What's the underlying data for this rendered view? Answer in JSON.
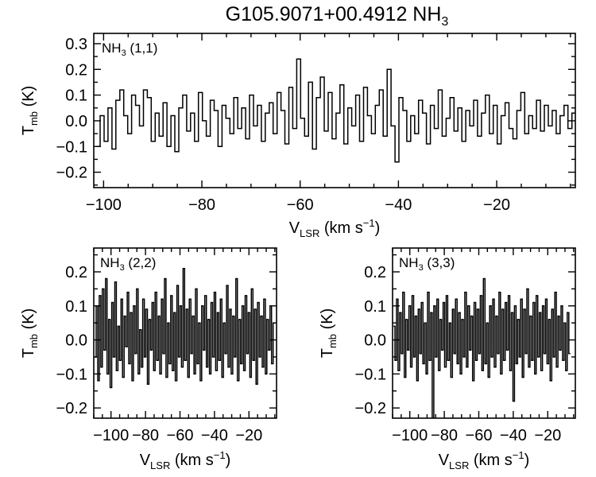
{
  "figure": {
    "title_main": "G105.9071+00.4912 NH",
    "title_sub": "3"
  },
  "chart_data": [
    {
      "type": "line",
      "series": [
        {
          "name": "NH3 (1,1)"
        }
      ],
      "label_main": "NH",
      "label_sub": "3",
      "label_rest": " (1,1)",
      "xlim": [
        -102,
        -4
      ],
      "ylim": [
        -0.26,
        0.34
      ],
      "x_ticks": [
        -100,
        -80,
        -60,
        -40,
        -20
      ],
      "x_tick_labels": [
        "−100",
        "−80",
        "−60",
        "−40",
        "−20"
      ],
      "y_ticks": [
        -0.2,
        -0.1,
        0.0,
        0.1,
        0.2,
        0.3
      ],
      "y_tick_labels": [
        "−0.2",
        "−0.1",
        "0.0",
        "0.1",
        "0.2",
        "0.3"
      ],
      "xlabel_main": "V",
      "xlabel_sub": "LSR",
      "xlabel_rest": " (km s",
      "xlabel_sup": "−1",
      "xlabel_end": ")",
      "ylabel_main": "T",
      "ylabel_sub": "mb",
      "ylabel_rest": " (K)",
      "x_start": -101.5,
      "x_step": 0.8,
      "values": [
        -0.1,
        0.02,
        -0.08,
        0.05,
        -0.11,
        0.08,
        0.12,
        0.02,
        -0.05,
        0.1,
        0.06,
        -0.02,
        0.12,
        0.09,
        -0.08,
        0.03,
        -0.06,
        0.07,
        -0.1,
        0.02,
        -0.12,
        0.05,
        0.1,
        -0.04,
        0.03,
        -0.08,
        0.11,
        0.0,
        -0.06,
        0.08,
        0.04,
        -0.1,
        0.06,
        0.01,
        -0.05,
        0.09,
        -0.03,
        0.05,
        -0.07,
        0.1,
        -0.02,
        0.06,
        -0.08,
        0.03,
        0.07,
        -0.05,
        0.11,
        0.04,
        -0.09,
        0.13,
        -0.03,
        0.24,
        0.01,
        -0.06,
        0.15,
        -0.11,
        0.09,
        0.17,
        -0.04,
        0.11,
        -0.07,
        0.03,
        0.14,
        -0.09,
        0.05,
        -0.02,
        0.1,
        -0.08,
        0.13,
        0.02,
        -0.05,
        0.06,
        0.12,
        -0.06,
        0.2,
        -0.02,
        -0.16,
        0.09,
        0.04,
        -0.08,
        0.02,
        -0.05,
        0.08,
        0.03,
        -0.09,
        0.06,
        -0.03,
        0.12,
        -0.06,
        0.01,
        0.09,
        -0.04,
        0.05,
        -0.08,
        0.04,
        -0.02,
        0.08,
        -0.06,
        0.03,
        0.1,
        -0.05,
        0.06,
        -0.09,
        0.02,
        0.07,
        -0.03,
        -0.07,
        0.04,
        0.11,
        -0.05,
        0.02,
        -0.03,
        0.08,
        -0.04,
        0.06,
        -0.02,
        0.04,
        -0.05,
        0.02,
        0.06,
        -0.03,
        0.03,
        -0.07,
        0.05,
        -0.01,
        0.03,
        -0.08,
        0.0,
        -0.13
      ]
    },
    {
      "type": "line",
      "series": [
        {
          "name": "NH3 (2,2)"
        }
      ],
      "label_main": "NH",
      "label_sub": "3",
      "label_rest": " (2,2)",
      "xlim": [
        -110,
        -4
      ],
      "ylim": [
        -0.23,
        0.27
      ],
      "x_ticks": [
        -100,
        -80,
        -60,
        -40,
        -20
      ],
      "x_tick_labels": [
        "−100",
        "−80",
        "−60",
        "−40",
        "−20"
      ],
      "y_ticks": [
        -0.2,
        -0.1,
        0.0,
        0.1,
        0.2
      ],
      "y_tick_labels": [
        "−0.2",
        "−0.1",
        "0.0",
        "0.1",
        "0.2"
      ],
      "xlabel_main": "V",
      "xlabel_sub": "LSR",
      "xlabel_rest": " (km s",
      "xlabel_sup": "−1",
      "xlabel_end": ")",
      "ylabel_main": "T",
      "ylabel_sub": "mb",
      "ylabel_rest": " (K)",
      "x_start": -109.5,
      "x_step": 0.9,
      "values": [
        -0.05,
        0.1,
        -0.12,
        0.13,
        -0.08,
        0.15,
        -0.03,
        0.18,
        -0.1,
        0.06,
        -0.14,
        0.11,
        -0.05,
        0.17,
        -0.09,
        0.04,
        -0.06,
        0.12,
        -0.11,
        0.07,
        -0.02,
        0.14,
        -0.07,
        0.08,
        -0.12,
        0.1,
        -0.04,
        0.15,
        -0.1,
        0.03,
        -0.08,
        0.12,
        -0.05,
        0.09,
        -0.13,
        0.06,
        -0.03,
        0.11,
        -0.09,
        0.14,
        -0.06,
        0.07,
        -0.1,
        0.12,
        -0.04,
        0.18,
        -0.11,
        0.05,
        -0.07,
        0.13,
        -0.09,
        0.08,
        -0.12,
        0.16,
        -0.05,
        0.1,
        -0.08,
        0.21,
        -0.06,
        0.09,
        -0.11,
        0.12,
        -0.04,
        0.07,
        -0.1,
        0.15,
        -0.07,
        0.05,
        -0.12,
        0.1,
        -0.03,
        0.13,
        -0.08,
        0.06,
        -0.1,
        0.11,
        -0.05,
        0.14,
        -0.09,
        0.08,
        -0.06,
        0.12,
        -0.11,
        0.05,
        -0.04,
        0.16,
        -0.08,
        0.09,
        -0.1,
        0.07,
        -0.05,
        0.18,
        -0.12,
        0.06,
        -0.07,
        0.1,
        -0.09,
        0.13,
        -0.04,
        0.08,
        -0.11,
        0.15,
        -0.06,
        0.09,
        -0.13,
        0.11,
        -0.05,
        0.07,
        -0.08,
        0.12,
        -0.1,
        0.06,
        -0.03,
        0.1,
        -0.07,
        0.05
      ]
    },
    {
      "type": "line",
      "series": [
        {
          "name": "NH3 (3,3)"
        }
      ],
      "label_main": "NH",
      "label_sub": "3",
      "label_rest": " (3,3)",
      "xlim": [
        -110,
        -4
      ],
      "ylim": [
        -0.23,
        0.27
      ],
      "x_ticks": [
        -100,
        -80,
        -60,
        -40,
        -20
      ],
      "x_tick_labels": [
        "−100",
        "−80",
        "−60",
        "−40",
        "−20"
      ],
      "y_ticks": [
        -0.2,
        -0.1,
        0.0,
        0.1,
        0.2
      ],
      "y_tick_labels": [
        "−0.2",
        "−0.1",
        "0.0",
        "0.1",
        "0.2"
      ],
      "xlabel_main": "V",
      "xlabel_sub": "LSR",
      "xlabel_rest": " (km s",
      "xlabel_sup": "−1",
      "xlabel_end": ")",
      "ylabel_main": "T",
      "ylabel_sub": "mb",
      "ylabel_rest": " (K)",
      "x_start": -109.5,
      "x_step": 0.9,
      "values": [
        0.04,
        -0.06,
        0.12,
        -0.09,
        0.08,
        -0.04,
        0.14,
        -0.11,
        0.06,
        -0.03,
        0.1,
        -0.08,
        0.13,
        -0.05,
        0.07,
        -0.12,
        0.09,
        -0.04,
        0.11,
        -0.07,
        0.05,
        -0.1,
        0.14,
        -0.06,
        0.08,
        -0.27,
        0.1,
        -0.05,
        0.12,
        -0.09,
        0.06,
        -0.03,
        0.11,
        -0.08,
        0.13,
        -0.06,
        0.05,
        -0.11,
        0.09,
        -0.04,
        0.12,
        -0.07,
        0.08,
        -0.1,
        0.06,
        -0.05,
        0.14,
        -0.08,
        0.1,
        -0.03,
        0.07,
        -0.12,
        0.11,
        -0.06,
        0.09,
        -0.04,
        0.13,
        -0.09,
        0.18,
        -0.07,
        0.05,
        -0.11,
        0.1,
        -0.05,
        0.12,
        -0.08,
        0.07,
        -0.04,
        0.14,
        -0.1,
        0.09,
        -0.06,
        0.11,
        -0.03,
        0.13,
        -0.09,
        0.08,
        -0.18,
        0.1,
        -0.07,
        0.06,
        -0.05,
        0.12,
        -0.11,
        0.09,
        -0.04,
        0.15,
        -0.08,
        0.07,
        -0.06,
        0.11,
        -0.1,
        0.13,
        -0.05,
        0.08,
        -0.09,
        0.1,
        -0.04,
        0.12,
        -0.07,
        0.06,
        -0.12,
        0.09,
        -0.05,
        0.14,
        -0.08,
        0.07,
        -0.03,
        0.1,
        -0.06,
        0.05,
        -0.09,
        0.08,
        -0.04
      ]
    }
  ]
}
